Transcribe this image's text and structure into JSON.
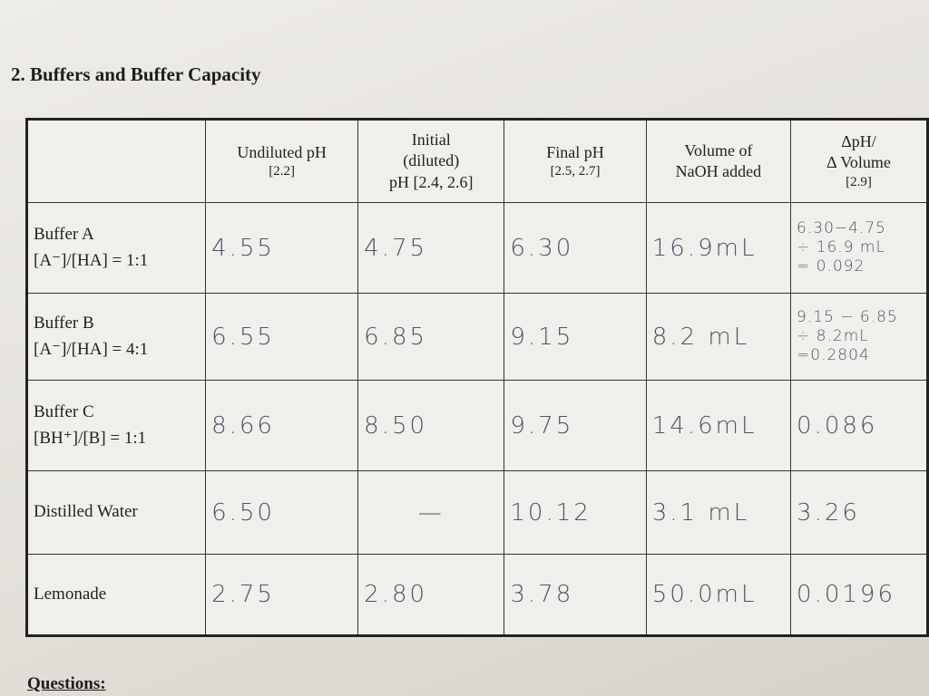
{
  "section_title": "2. Buffers and Buffer Capacity",
  "table": {
    "headers": [
      [
        "Undiluted pH",
        "[2.2]"
      ],
      [
        "Initial",
        "(diluted)",
        "pH [2.4, 2.6]"
      ],
      [
        "Final pH",
        "[2.5, 2.7]"
      ],
      [
        "Volume of",
        "NaOH added"
      ],
      [
        "ΔpH/",
        "Δ Volume",
        "[2.9]"
      ]
    ],
    "rows": [
      {
        "label": [
          "Buffer A",
          "[A⁻]/[HA] = 1:1"
        ],
        "cells": [
          [
            "4.55"
          ],
          [
            "4.75"
          ],
          [
            "6.30"
          ],
          [
            "16.9mL"
          ],
          [
            "6.30−4.75",
            "÷ 16.9 mL",
            "= 0.092"
          ]
        ]
      },
      {
        "label": [
          "Buffer B",
          "[A⁻]/[HA] = 4:1"
        ],
        "cells": [
          [
            "6.55"
          ],
          [
            "6.85"
          ],
          [
            "9.15"
          ],
          [
            "8.2 mL"
          ],
          [
            "9.15 − 6.85",
            "÷ 8.2mL",
            "=0.2804"
          ]
        ]
      },
      {
        "label": [
          "Buffer C",
          "[BH⁺]/[B] = 1:1"
        ],
        "cells": [
          [
            "8.66"
          ],
          [
            "8.50"
          ],
          [
            "9.75"
          ],
          [
            "14.6mL"
          ],
          [
            "0.086"
          ]
        ]
      },
      {
        "label": [
          "Distilled Water"
        ],
        "cells": [
          [
            "6.50"
          ],
          [
            "—"
          ],
          [
            "10.12"
          ],
          [
            "3.1 mL"
          ],
          [
            "3.26"
          ]
        ]
      },
      {
        "label": [
          "Lemonade"
        ],
        "cells": [
          [
            "2.75"
          ],
          [
            "2.80"
          ],
          [
            "3.78"
          ],
          [
            "50.0mL"
          ],
          [
            "0.0196"
          ]
        ]
      }
    ]
  },
  "footer": "Questions:"
}
